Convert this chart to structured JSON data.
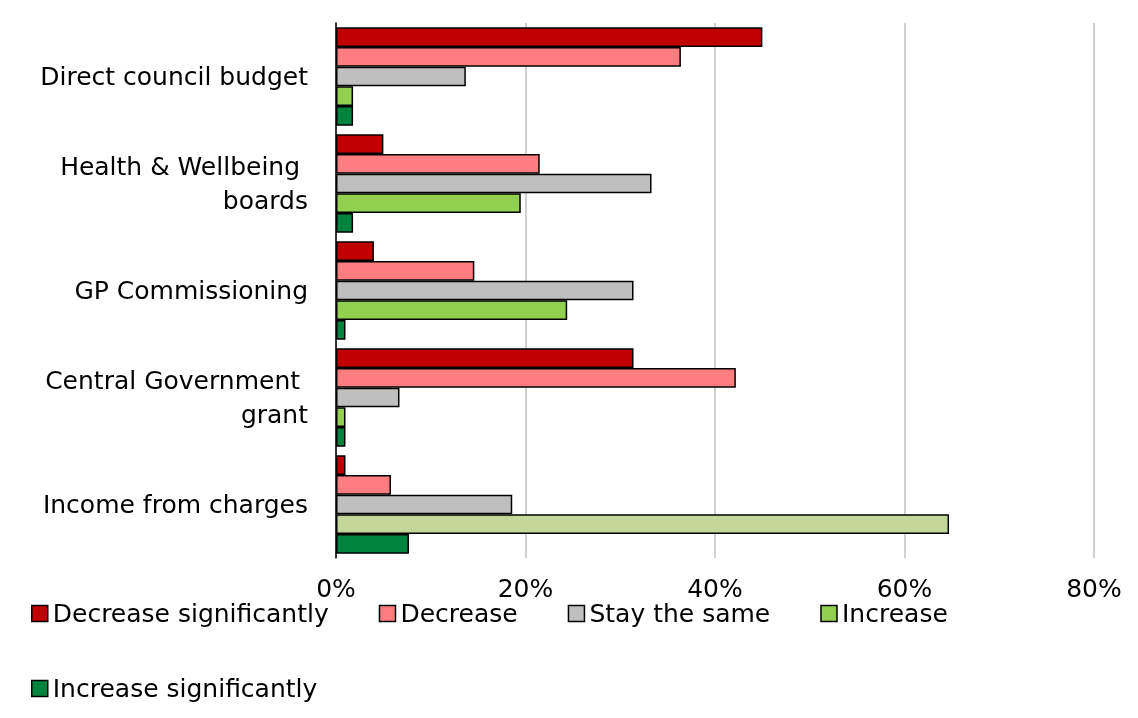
{
  "chart_data": {
    "type": "bar",
    "orientation": "horizontal",
    "categories": [
      "Direct council budget",
      "Health & Wellbeing boards",
      "GP Commissioning",
      "Central Government grant",
      "Income from charges"
    ],
    "series": [
      {
        "name": "Decrease significantly",
        "color": "#c00000",
        "values": [
          45,
          5,
          4,
          31.4,
          1
        ]
      },
      {
        "name": "Decrease",
        "color": "#ff7c80",
        "values": [
          36.4,
          21.5,
          14.6,
          42.2,
          5.8
        ]
      },
      {
        "name": "Stay the same",
        "color": "#bfbfbf",
        "values": [
          13.7,
          33.3,
          31.4,
          6.7,
          18.6
        ]
      },
      {
        "name": "Increase",
        "color": "#92d050",
        "colors": [
          "#92d050",
          "#92d050",
          "#92d050",
          "#92d050",
          "#c4d79b"
        ],
        "values": [
          1.8,
          19.5,
          24.4,
          1,
          64.7
        ]
      },
      {
        "name": "Increase significantly",
        "color": "#00843d",
        "values": [
          1.8,
          1.8,
          1,
          1,
          7.7
        ]
      }
    ],
    "xlim": [
      0,
      80
    ],
    "xticks": [
      {
        "value": 0,
        "label": "0%"
      },
      {
        "value": 20,
        "label": "20%"
      },
      {
        "value": 40,
        "label": "40%"
      },
      {
        "value": 60,
        "label": "60%"
      },
      {
        "value": 80,
        "label": "80%"
      }
    ],
    "grid": "x",
    "legend": "bottom"
  }
}
